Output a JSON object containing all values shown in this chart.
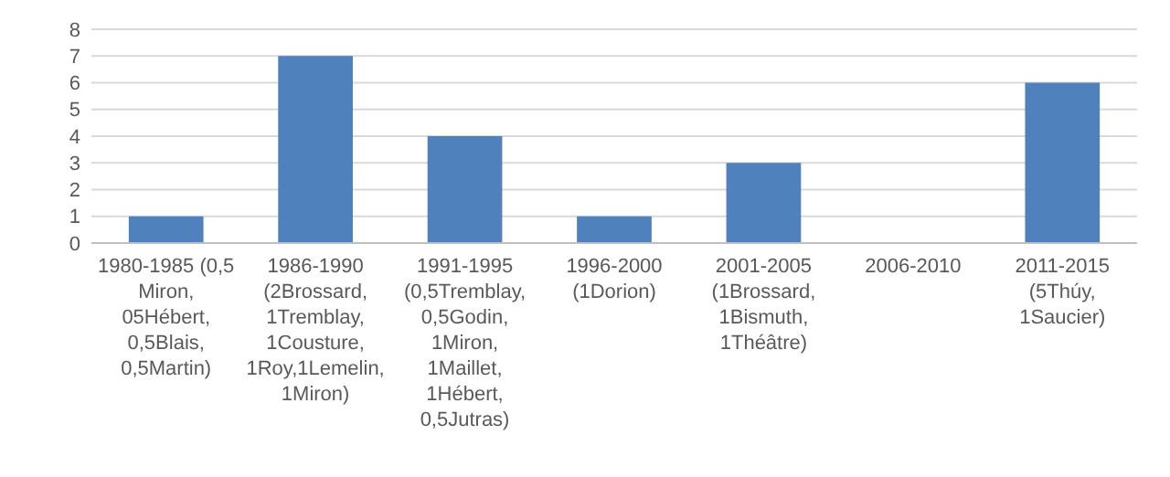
{
  "chart_data": {
    "type": "bar",
    "categories": [
      "1980-1985 (0,5 Miron, 05Hébert, 0,5Blais, 0,5Martin)",
      "1986-1990 (2Brossard, 1Tremblay, 1Cousture, 1Roy,1Lemelin, 1Miron)",
      "1991-1995 (0,5Tremblay, 0,5Godin, 1Miron, 1Maillet, 1Hébert, 0,5Jutras)",
      "1996-2000 (1Dorion)",
      "2001-2005 (1Brossard, 1Bismuth, 1Théâtre)",
      "2006-2010",
      "2011-2015 (5Thúy, 1Saucier)"
    ],
    "values": [
      1,
      7,
      4,
      1,
      3,
      0,
      6
    ],
    "color": "#4f81bd",
    "ylim": [
      0,
      8
    ],
    "yticks": [
      0,
      1,
      2,
      3,
      4,
      5,
      6,
      7,
      8
    ],
    "grid": "y"
  }
}
